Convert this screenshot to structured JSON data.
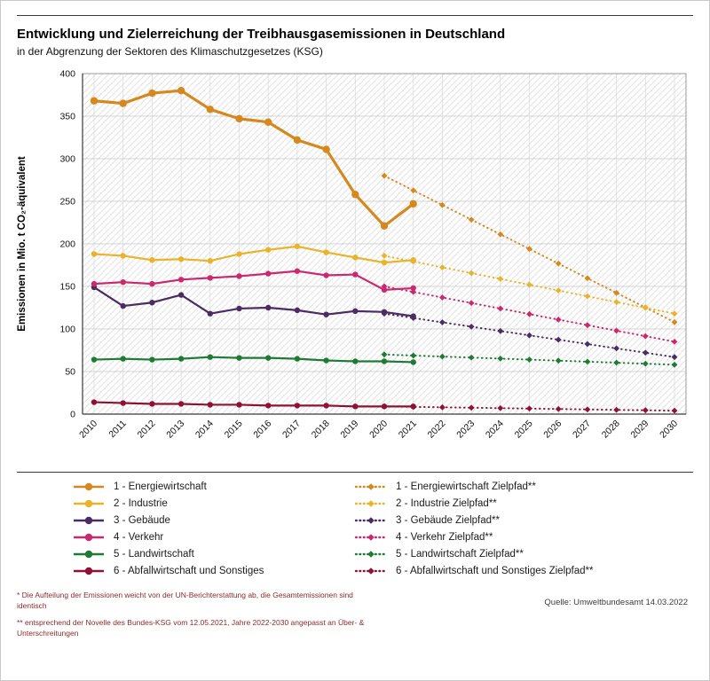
{
  "page": {
    "title": "Entwicklung und Zielerreichung der Treibhausgasemissionen in Deutschland",
    "subtitle": "in der Abgrenzung der Sektoren des Klimaschutzgesetzes (KSG)",
    "footnote1": "* Die Aufteilung der Emissionen weicht von der UN-Berichterstattung ab, die Gesamtemissionen sind identisch",
    "footnote2": "** entsprechend der Novelle des Bundes-KSG vom 12.05.2021, Jahre 2022-2030 angepasst an Über- & Unterschreitungen",
    "source": "Quelle: Umweltbundesamt  14.03.2022"
  },
  "chart_data": {
    "type": "line",
    "ylabel": "Emissionen in Mio. t CO₂-äquivalent",
    "ylim": [
      0,
      400
    ],
    "ytick_step": 50,
    "grid": true,
    "hatched_background": true,
    "x_years": [
      2010,
      2011,
      2012,
      2013,
      2014,
      2015,
      2016,
      2017,
      2018,
      2019,
      2020,
      2021,
      2022,
      2023,
      2024,
      2025,
      2026,
      2027,
      2028,
      2029,
      2030
    ],
    "series": [
      {
        "id": "energiewirtschaft",
        "label": "1 - Energiewirtschaft",
        "color": "#D4881E",
        "start_year": 2010,
        "values": [
          368,
          365,
          377,
          380,
          358,
          347,
          343,
          322,
          311,
          258,
          221,
          247
        ]
      },
      {
        "id": "industrie",
        "label": "2 - Industrie",
        "color": "#E9B42C",
        "start_year": 2010,
        "values": [
          188,
          186,
          181,
          182,
          180,
          188,
          193,
          197,
          190,
          184,
          178,
          181
        ]
      },
      {
        "id": "gebaeude",
        "label": "3 - Gebäude",
        "color": "#4B2B62",
        "start_year": 2010,
        "values": [
          149,
          127,
          131,
          140,
          118,
          124,
          125,
          122,
          117,
          121,
          120,
          115
        ]
      },
      {
        "id": "verkehr",
        "label": "4 - Verkehr",
        "color": "#C92A6E",
        "start_year": 2010,
        "values": [
          153,
          155,
          153,
          158,
          160,
          162,
          165,
          168,
          163,
          164,
          146,
          148
        ]
      },
      {
        "id": "landwirtschaft",
        "label": "5 - Landwirtschaft",
        "color": "#1E7B33",
        "start_year": 2010,
        "values": [
          64,
          65,
          64,
          65,
          67,
          66,
          66,
          65,
          63,
          62,
          62,
          61
        ]
      },
      {
        "id": "abfallwirtschaft",
        "label": "6 - Abfallwirtschaft und Sonstiges",
        "color": "#8F1236",
        "start_year": 2010,
        "values": [
          14,
          13,
          12,
          12,
          11,
          11,
          10,
          10,
          10,
          9,
          9,
          9
        ]
      }
    ],
    "targets": [
      {
        "id": "energiewirtschaft-zielpfad",
        "label": "1 - Energiewirtschaft Zielpfad**",
        "color": "#D4881E",
        "x": [
          2020,
          2030
        ],
        "values": [
          280,
          108
        ]
      },
      {
        "id": "industrie-zielpfad",
        "label": "2 - Industrie Zielpfad**",
        "color": "#E9B42C",
        "x": [
          2020,
          2030
        ],
        "values": [
          186,
          118
        ]
      },
      {
        "id": "gebaeude-zielpfad",
        "label": "3 - Gebäude Zielpfad**",
        "color": "#4B2B62",
        "x": [
          2020,
          2030
        ],
        "values": [
          118,
          67
        ]
      },
      {
        "id": "verkehr-zielpfad",
        "label": "4 - Verkehr Zielpfad**",
        "color": "#C92A6E",
        "x": [
          2020,
          2030
        ],
        "values": [
          150,
          85
        ]
      },
      {
        "id": "landwirtschaft-zielpfad",
        "label": "5 - Landwirtschaft Zielpfad**",
        "color": "#1E7B33",
        "x": [
          2020,
          2030
        ],
        "values": [
          70,
          58
        ]
      },
      {
        "id": "abfallwirtschaft-zielpfad",
        "label": "6 - Abfallwirtschaft und Sonstiges Zielpfad**",
        "color": "#8F1236",
        "x": [
          2020,
          2030
        ],
        "values": [
          9,
          4
        ]
      }
    ]
  }
}
